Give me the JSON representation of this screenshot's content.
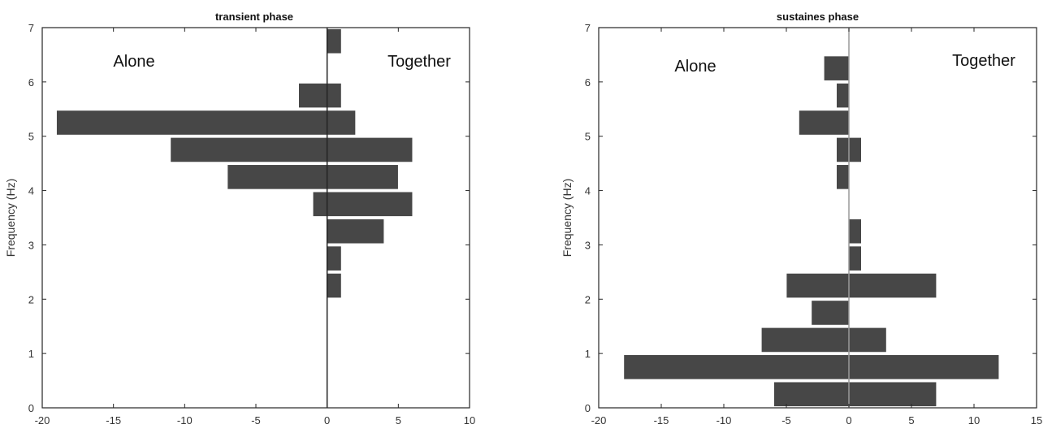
{
  "chart_data": [
    {
      "type": "bar",
      "orientation": "horizontal-back-to-back",
      "title": "transient phase",
      "ylabel": "Frequency (Hz)",
      "xlabel": "",
      "xlim": [
        -20,
        10
      ],
      "ylim": [
        0,
        7
      ],
      "xticks": [
        -20,
        -15,
        -10,
        -5,
        0,
        5,
        10
      ],
      "yticks": [
        0,
        1,
        2,
        3,
        4,
        5,
        6,
        7
      ],
      "annotations": [
        "Alone",
        "Together"
      ],
      "bins": [
        0.25,
        0.75,
        1.25,
        1.75,
        2.25,
        2.75,
        3.25,
        3.75,
        4.25,
        4.75,
        5.25,
        5.75,
        6.25,
        6.75
      ],
      "series": [
        {
          "name": "Alone",
          "values": [
            0,
            0,
            0,
            0,
            0,
            0,
            0,
            -1,
            -7,
            -11,
            -19,
            -2,
            0,
            0
          ]
        },
        {
          "name": "Together",
          "values": [
            0,
            0,
            0,
            0,
            1,
            1,
            4,
            6,
            5,
            6,
            2,
            1,
            0,
            1
          ]
        }
      ],
      "bar_color": "#474747",
      "grid": false
    },
    {
      "type": "bar",
      "orientation": "horizontal-back-to-back",
      "title": "sustaines phase",
      "ylabel": "Frequency (Hz)",
      "xlabel": "",
      "xlim": [
        -20,
        15
      ],
      "ylim": [
        0,
        7
      ],
      "xticks": [
        -20,
        -15,
        -10,
        -5,
        0,
        5,
        10,
        15
      ],
      "yticks": [
        0,
        1,
        2,
        3,
        4,
        5,
        6,
        7
      ],
      "annotations": [
        "Alone",
        "Together"
      ],
      "bins": [
        0.25,
        0.75,
        1.25,
        1.75,
        2.25,
        2.75,
        3.25,
        3.75,
        4.25,
        4.75,
        5.25,
        5.75,
        6.25,
        6.75
      ],
      "series": [
        {
          "name": "Alone",
          "values": [
            -6,
            -18,
            -7,
            -3,
            -5,
            0,
            0,
            0,
            -1,
            -1,
            -4,
            -1,
            -2,
            0
          ]
        },
        {
          "name": "Together",
          "values": [
            7,
            12,
            3,
            0,
            7,
            1,
            1,
            0,
            0,
            1,
            0,
            0,
            0,
            0
          ]
        }
      ],
      "bar_color": "#474747",
      "grid": false
    }
  ]
}
